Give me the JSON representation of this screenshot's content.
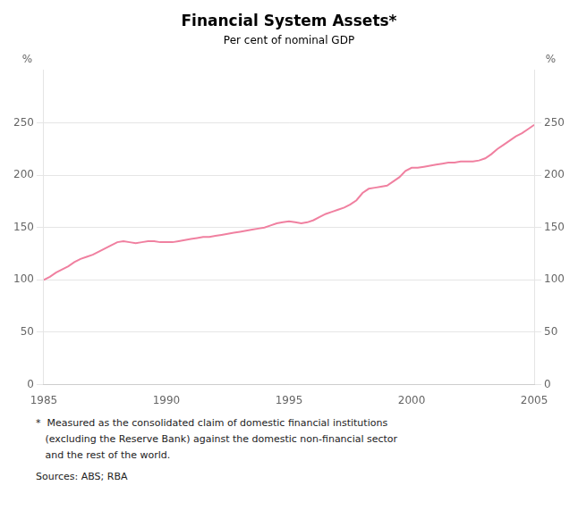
{
  "chart_data": {
    "type": "line",
    "title": "Financial System Assets*",
    "subtitle": "Per cent of nominal GDP",
    "ylabel": "%",
    "y2label": "%",
    "x": [
      1985.0,
      1985.25,
      1985.5,
      1985.75,
      1986.0,
      1986.25,
      1986.5,
      1986.75,
      1987.0,
      1987.25,
      1987.5,
      1987.75,
      1988.0,
      1988.25,
      1988.5,
      1988.75,
      1989.0,
      1989.25,
      1989.5,
      1989.75,
      1990.0,
      1990.25,
      1990.5,
      1990.75,
      1991.0,
      1991.25,
      1991.5,
      1991.75,
      1992.0,
      1992.25,
      1992.5,
      1992.75,
      1993.0,
      1993.25,
      1993.5,
      1993.75,
      1994.0,
      1994.25,
      1994.5,
      1994.75,
      1995.0,
      1995.25,
      1995.5,
      1995.75,
      1996.0,
      1996.25,
      1996.5,
      1996.75,
      1997.0,
      1997.25,
      1997.5,
      1997.75,
      1998.0,
      1998.25,
      1998.5,
      1998.75,
      1999.0,
      1999.25,
      1999.5,
      1999.75,
      2000.0,
      2000.25,
      2000.5,
      2000.75,
      2001.0,
      2001.25,
      2001.5,
      2001.75,
      2002.0,
      2002.25,
      2002.5,
      2002.75,
      2003.0,
      2003.25,
      2003.5,
      2003.75,
      2004.0,
      2004.25,
      2004.5,
      2004.75,
      2005.0
    ],
    "values": [
      100,
      103,
      107,
      110,
      113,
      117,
      120,
      122,
      124,
      127,
      130,
      133,
      136,
      137,
      136,
      135,
      136,
      137,
      137,
      136,
      136,
      136,
      137,
      138,
      139,
      140,
      141,
      141,
      142,
      143,
      144,
      145,
      146,
      147,
      148,
      149,
      150,
      152,
      154,
      155,
      156,
      155,
      154,
      155,
      157,
      160,
      163,
      165,
      167,
      169,
      172,
      176,
      183,
      187,
      188,
      189,
      190,
      194,
      198,
      204,
      207,
      207,
      208,
      209,
      210,
      211,
      212,
      212,
      213,
      213,
      213,
      214,
      216,
      220,
      225,
      229,
      233,
      237,
      240,
      244,
      248
    ],
    "color": "#F080A0",
    "xlim": [
      1985,
      2005
    ],
    "xticks": [
      1985,
      1990,
      1995,
      2000,
      2005
    ],
    "ylim": [
      0,
      300
    ],
    "yticks": [
      0,
      50,
      100,
      150,
      200,
      250
    ],
    "y2lim": [
      0,
      300
    ],
    "y2ticks": [
      0,
      50,
      100,
      150,
      200,
      250
    ],
    "grid": true,
    "footnotes": [
      "*  Measured as the consolidated claim of domestic financial institutions",
      "   (excluding the Reserve Bank) against the domestic non-financial sector",
      "   and the rest of the world."
    ],
    "sources": "Sources: ABS; RBA"
  }
}
